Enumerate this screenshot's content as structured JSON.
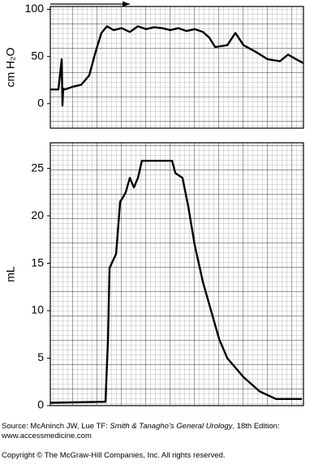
{
  "chart_data": [
    {
      "type": "line",
      "ylabel": "cm H₂O",
      "x": [
        0,
        3.2,
        3.8,
        4.5,
        4.8,
        5.1,
        5.8,
        9,
        12.2,
        15.4,
        17.9,
        20.2,
        22.4,
        25,
        28.2,
        31.4,
        34.6,
        37.8,
        41,
        44.2,
        47.4,
        50.6,
        53.8,
        57,
        60.3,
        62.8,
        65.1,
        69.9,
        73.1,
        76.3,
        81.1,
        85.9,
        90.7,
        93.9,
        97.1,
        100
      ],
      "series": [
        {
          "color": "#000000",
          "values": [
            15,
            15,
            30,
            47,
            -2,
            16,
            15,
            18,
            20,
            30,
            55,
            75,
            82,
            78,
            80,
            76,
            82,
            79,
            81,
            80,
            78,
            80,
            77,
            79,
            76,
            70,
            60,
            62,
            75,
            62,
            55,
            47,
            45,
            52,
            47,
            43
          ]
        }
      ],
      "xlim": [
        0,
        100
      ],
      "ylim": [
        -26,
        103
      ],
      "yticks": [
        0,
        50,
        100
      ]
    },
    {
      "type": "line",
      "ylabel": "mL",
      "x": [
        0,
        21.8,
        22.8,
        23.4,
        26,
        27.6,
        28.8,
        29.8,
        31.4,
        33,
        34.6,
        36.2,
        48.1,
        49.4,
        52.2,
        54.5,
        57,
        60.3,
        63.5,
        66.7,
        69.9,
        76.3,
        82.7,
        89.1,
        99.4
      ],
      "series": [
        {
          "color": "#000000",
          "values": [
            0.3,
            0.4,
            7,
            14.5,
            16,
            21.5,
            22,
            22.5,
            24,
            23,
            24,
            25.8,
            25.8,
            24.5,
            24,
            21,
            17,
            13,
            10,
            7,
            5,
            3,
            1.5,
            0.7,
            0.7
          ]
        }
      ],
      "xlim": [
        0,
        100
      ],
      "ylim": [
        0,
        27.7
      ],
      "yticks": [
        0,
        5,
        10,
        15,
        20,
        25
      ]
    }
  ],
  "footer": {
    "source_prefix": "Source: McAninch JW, Lue TF: ",
    "source_title": "Smith & Tanagho’s General Urology",
    "source_suffix": ", 18th Edition:",
    "url": "www.accessmedicine.com",
    "copyright": "Copyright © The McGraw-Hill Companies, Inc. All rights reserved."
  }
}
